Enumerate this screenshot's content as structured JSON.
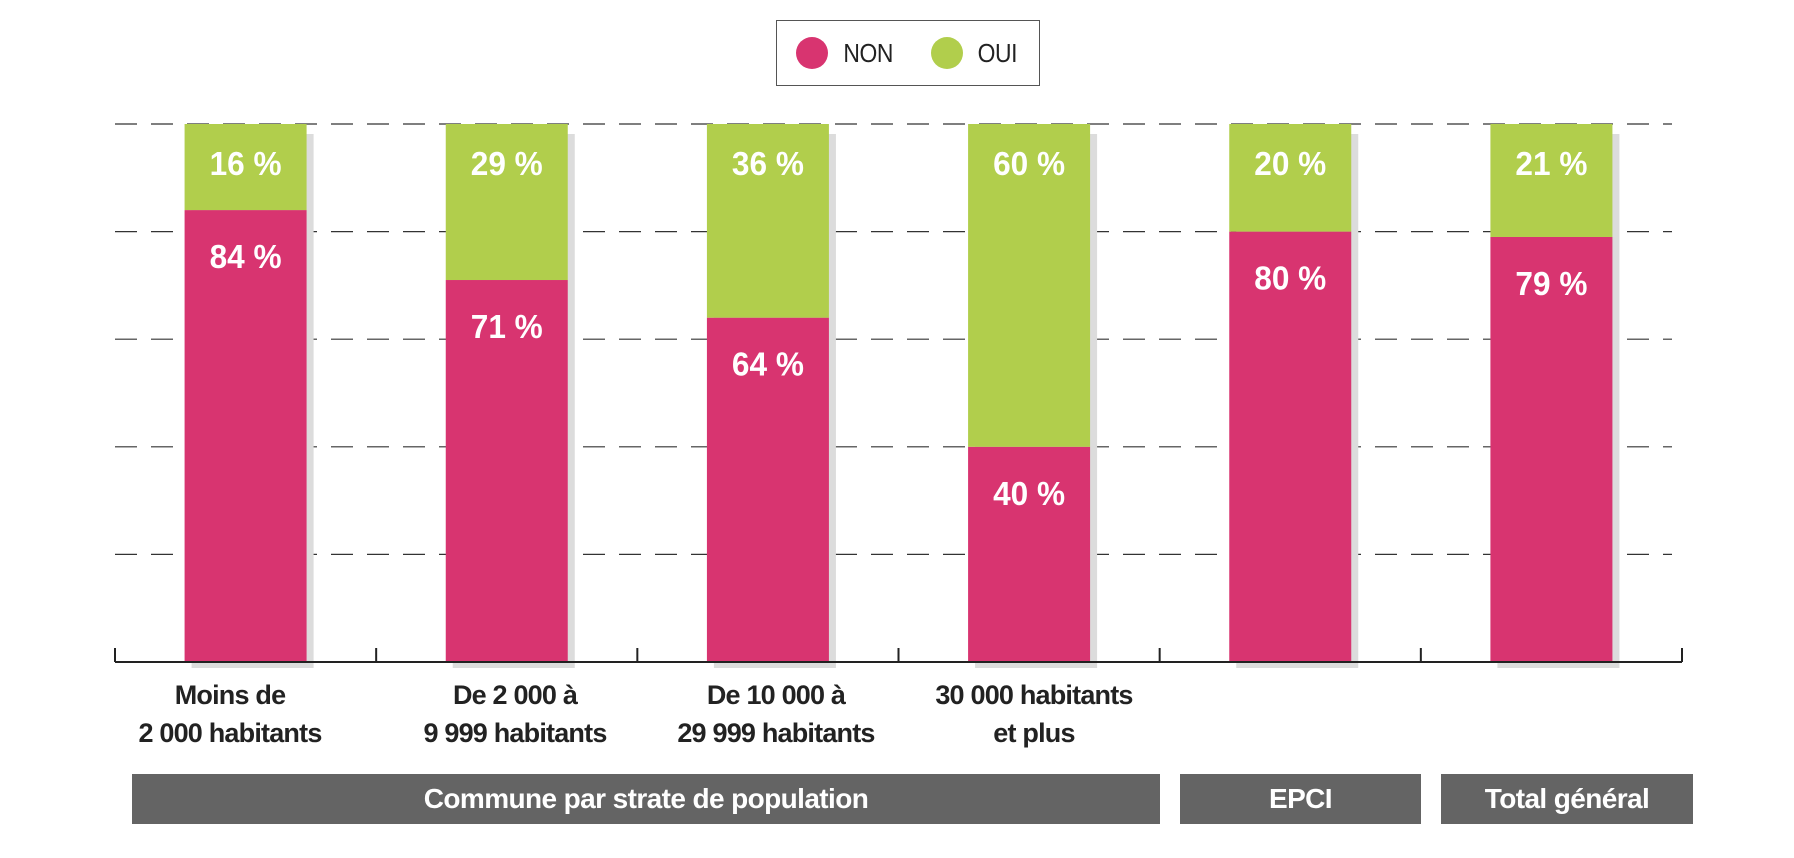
{
  "legend": {
    "items": [
      {
        "label": "NON",
        "color": "#d83470"
      },
      {
        "label": "OUI",
        "color": "#b1ce4c"
      }
    ]
  },
  "colors": {
    "non": "#d83470",
    "oui": "#b1ce4c",
    "shadow": "#dcdcdc",
    "banner": "#646464",
    "grid": "#333333"
  },
  "chart_data": {
    "type": "bar",
    "stacked": true,
    "categories": [
      "Moins de\n2 000 habitants",
      "De 2 000 à\n9 999 habitants",
      "De 10 000 à\n29 999 habitants",
      "30 000 habitants\net plus",
      "",
      ""
    ],
    "series": [
      {
        "name": "NON",
        "values": [
          84,
          71,
          64,
          40,
          80,
          79
        ],
        "labels": [
          "84 %",
          "71 %",
          "64 %",
          "40 %",
          "80 %",
          "79 %"
        ]
      },
      {
        "name": "OUI",
        "values": [
          16,
          29,
          36,
          60,
          20,
          21
        ],
        "labels": [
          "16 %",
          "29 %",
          "36 %",
          "60 %",
          "20 %",
          "21 %"
        ]
      }
    ],
    "ylim": [
      0,
      100
    ],
    "grid": true,
    "legend_position": "top-center",
    "groups": [
      {
        "label": "Commune par strate de population",
        "span": [
          0,
          3
        ]
      },
      {
        "label": "EPCI",
        "span": [
          4,
          4
        ]
      },
      {
        "label": "Total général",
        "span": [
          5,
          5
        ]
      }
    ]
  }
}
